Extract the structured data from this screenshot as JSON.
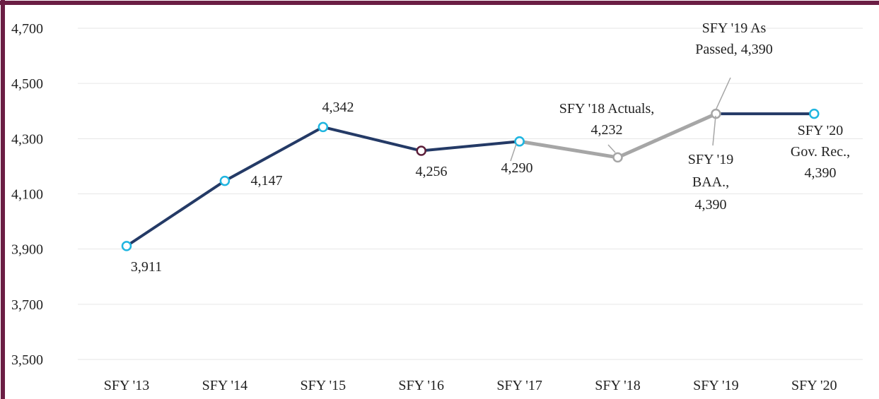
{
  "chart_data": {
    "type": "line",
    "categories": [
      "SFY '13",
      "SFY '14",
      "SFY '15",
      "SFY '16",
      "SFY '17",
      "SFY '18",
      "SFY '19",
      "SFY '20"
    ],
    "ylim": [
      3500,
      4700
    ],
    "yticks": [
      {
        "value": 3500,
        "label": "3,500"
      },
      {
        "value": 3700,
        "label": "3,700"
      },
      {
        "value": 3900,
        "label": "3,900"
      },
      {
        "value": 4100,
        "label": "4,100"
      },
      {
        "value": 4300,
        "label": "4,300"
      },
      {
        "value": 4500,
        "label": "4,500"
      },
      {
        "value": 4700,
        "label": "4,700"
      }
    ],
    "grid": true,
    "series": [
      {
        "color": "#a6a6a6",
        "values": [
          null,
          null,
          null,
          null,
          4290,
          4232,
          4390,
          null
        ],
        "marker_colors": [
          null,
          null,
          null,
          null,
          "#1fb5e0",
          "#a6a6a6",
          "#a6a6a6",
          null
        ],
        "value_labels": [
          null,
          null,
          null,
          null,
          null,
          [
            "SFY '18 Actuals,",
            "4,232"
          ],
          [
            "SFY '19 As",
            "Passed, 4,390"
          ],
          null
        ]
      },
      {
        "color": "#243a66",
        "values": [
          3911,
          4147,
          4342,
          4256,
          4290,
          null,
          4390,
          4390
        ],
        "marker_colors": [
          "#1fb5e0",
          "#1fb5e0",
          "#1fb5e0",
          "#5c1f3a",
          "#1fb5e0",
          null,
          null,
          "#1fb5e0"
        ],
        "value_labels": [
          [
            "3,911"
          ],
          [
            "4,147"
          ],
          [
            "4,342"
          ],
          [
            "4,256"
          ],
          [
            "4,290"
          ],
          null,
          [
            "SFY '19",
            "BAA.,",
            "4,390"
          ],
          [
            "SFY '20",
            "Gov. Rec.,",
            "4,390"
          ]
        ]
      }
    ]
  }
}
